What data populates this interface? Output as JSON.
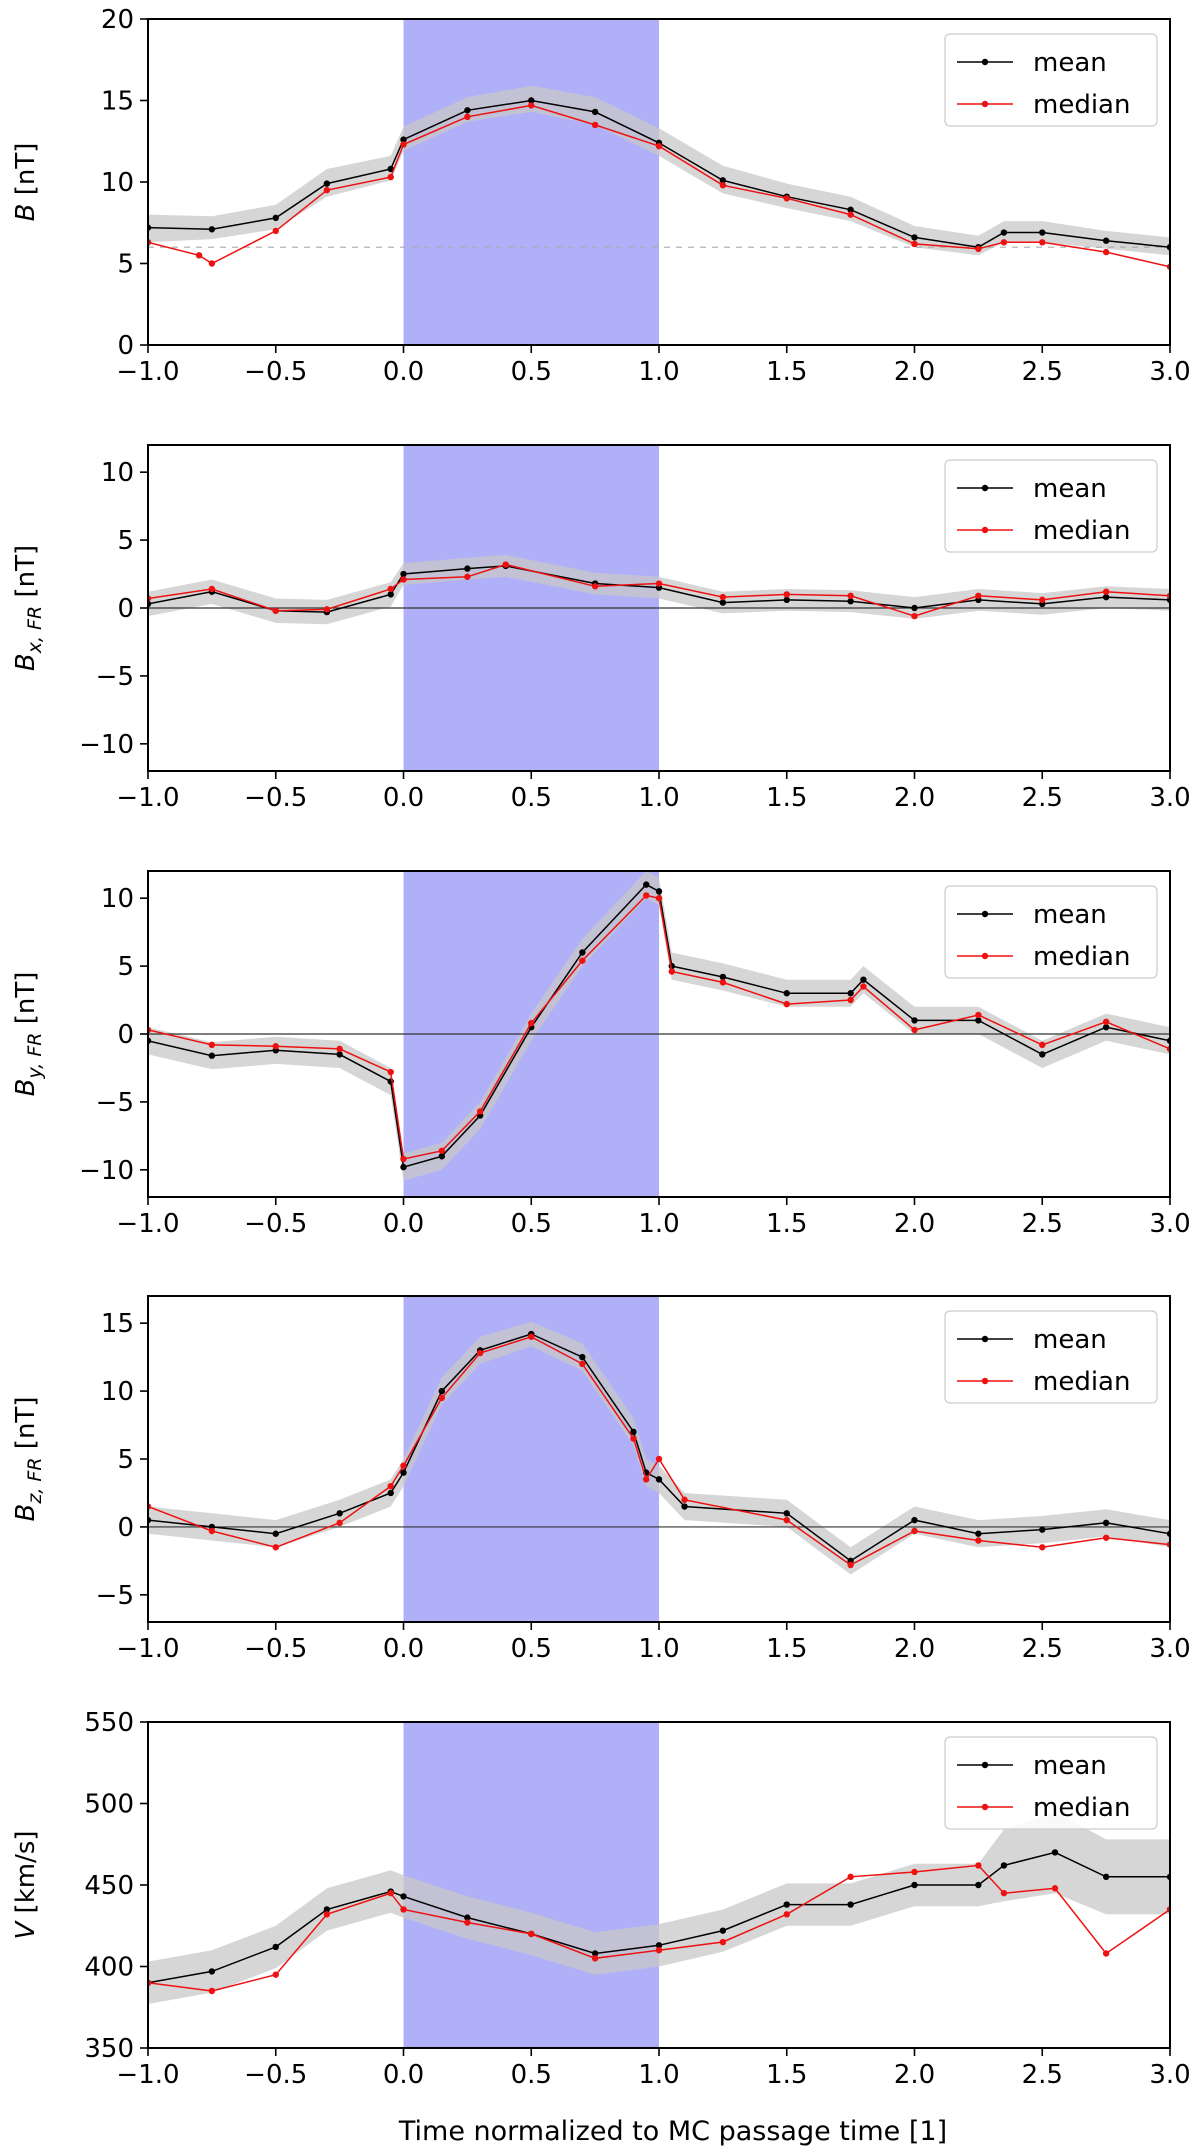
{
  "figure": {
    "xlabel": "Time normalized to MC passage time [1]",
    "shade_color": "#b0b0f8",
    "band_color": "#c8c8c8",
    "mean_color": "#000000",
    "median_color": "#ee1111"
  },
  "chart_data": [
    {
      "type": "line",
      "ylabel_main": "B",
      "ylabel_sub": "",
      "ylabel_unit": " [nT]",
      "ylim": [
        0,
        20
      ],
      "yticks": [
        0,
        5,
        10,
        15,
        20
      ],
      "xlim": [
        -1.0,
        3.0
      ],
      "xticks": [
        "−1.0",
        "−0.5",
        "0.0",
        "0.5",
        "1.0",
        "1.5",
        "2.0",
        "2.5",
        "3.0"
      ],
      "shaded_interval": [
        0.0,
        1.0
      ],
      "reference": {
        "value": 6,
        "style": "dashed"
      },
      "legend": [
        "mean",
        "median"
      ],
      "series": [
        {
          "name": "mean",
          "x": [
            -1.0,
            -0.75,
            -0.5,
            -0.3,
            -0.05,
            0.0,
            0.25,
            0.5,
            0.75,
            1.0,
            1.25,
            1.5,
            1.75,
            2.0,
            2.25,
            2.35,
            2.5,
            2.75,
            3.0
          ],
          "values": [
            7.2,
            7.1,
            7.8,
            9.9,
            10.8,
            12.6,
            14.4,
            15.0,
            14.3,
            12.4,
            10.1,
            9.1,
            8.3,
            6.6,
            6.0,
            6.9,
            6.9,
            6.4,
            6.0
          ]
        },
        {
          "name": "median",
          "x": [
            -1.0,
            -0.8,
            -0.75,
            -0.5,
            -0.3,
            -0.05,
            0.0,
            0.25,
            0.5,
            0.75,
            1.0,
            1.25,
            1.5,
            1.75,
            2.0,
            2.25,
            2.35,
            2.5,
            2.75,
            3.0
          ],
          "values": [
            6.3,
            5.5,
            5.0,
            7.0,
            9.5,
            10.3,
            12.3,
            14.0,
            14.7,
            13.5,
            12.2,
            9.8,
            9.0,
            8.0,
            6.2,
            5.9,
            6.3,
            6.3,
            5.7,
            4.8
          ]
        }
      ],
      "band": {
        "lower": [
          6.3,
          6.5,
          7.1,
          9.1,
          10.1,
          11.9,
          13.7,
          14.3,
          13.5,
          11.6,
          9.3,
          8.4,
          7.6,
          6.0,
          5.5,
          6.3,
          6.3,
          5.9,
          5.5
        ],
        "upper": [
          8.0,
          7.9,
          8.6,
          10.8,
          11.6,
          13.4,
          15.2,
          15.9,
          15.2,
          13.3,
          11.0,
          9.9,
          9.1,
          7.3,
          6.7,
          7.6,
          7.6,
          7.0,
          6.6
        ]
      }
    },
    {
      "type": "line",
      "ylabel_main": "B",
      "ylabel_sub": "x, FR",
      "ylabel_unit": " [nT]",
      "ylim": [
        -12,
        12
      ],
      "yticks": [
        -10,
        -5,
        0,
        5,
        10
      ],
      "xlim": [
        -1.0,
        3.0
      ],
      "xticks": [
        "−1.0",
        "−0.5",
        "0.0",
        "0.5",
        "1.0",
        "1.5",
        "2.0",
        "2.5",
        "3.0"
      ],
      "shaded_interval": [
        0.0,
        1.0
      ],
      "reference": {
        "value": 0,
        "style": "solid"
      },
      "legend": [
        "mean",
        "median"
      ],
      "series": [
        {
          "name": "mean",
          "x": [
            -1.0,
            -0.75,
            -0.5,
            -0.3,
            -0.05,
            0.0,
            0.25,
            0.4,
            0.75,
            1.0,
            1.25,
            1.5,
            1.75,
            2.0,
            2.25,
            2.5,
            2.75,
            3.0
          ],
          "values": [
            0.3,
            1.2,
            -0.2,
            -0.3,
            1.0,
            2.5,
            2.9,
            3.1,
            1.8,
            1.5,
            0.4,
            0.6,
            0.5,
            0.0,
            0.6,
            0.3,
            0.8,
            0.6
          ]
        },
        {
          "name": "median",
          "x": [
            -1.0,
            -0.75,
            -0.5,
            -0.3,
            -0.05,
            0.0,
            0.25,
            0.4,
            0.75,
            1.0,
            1.25,
            1.5,
            1.75,
            2.0,
            2.25,
            2.5,
            2.75,
            3.0
          ],
          "values": [
            0.7,
            1.4,
            -0.2,
            -0.1,
            1.4,
            2.1,
            2.3,
            3.2,
            1.6,
            1.8,
            0.8,
            1.0,
            0.9,
            -0.6,
            0.9,
            0.6,
            1.2,
            0.9
          ]
        }
      ],
      "band": {
        "lower": [
          -0.6,
          0.3,
          -1.1,
          -1.2,
          0.1,
          1.7,
          2.1,
          2.3,
          1.0,
          0.7,
          -0.4,
          -0.2,
          -0.3,
          -0.8,
          -0.2,
          -0.5,
          0.0,
          -0.2
        ],
        "upper": [
          1.2,
          2.1,
          0.7,
          0.6,
          1.9,
          3.3,
          3.7,
          3.9,
          2.6,
          2.3,
          1.2,
          1.4,
          1.3,
          0.8,
          1.4,
          1.1,
          1.6,
          1.4
        ]
      }
    },
    {
      "type": "line",
      "ylabel_main": "B",
      "ylabel_sub": "y, FR",
      "ylabel_unit": " [nT]",
      "ylim": [
        -12,
        12
      ],
      "yticks": [
        -10,
        -5,
        0,
        5,
        10
      ],
      "xlim": [
        -1.0,
        3.0
      ],
      "xticks": [
        "−1.0",
        "−0.5",
        "0.0",
        "0.5",
        "1.0",
        "1.5",
        "2.0",
        "2.5",
        "3.0"
      ],
      "shaded_interval": [
        0.0,
        1.0
      ],
      "reference": {
        "value": 0,
        "style": "solid"
      },
      "legend": [
        "mean",
        "median"
      ],
      "series": [
        {
          "name": "mean",
          "x": [
            -1.0,
            -0.75,
            -0.5,
            -0.25,
            -0.05,
            0.0,
            0.15,
            0.3,
            0.5,
            0.7,
            0.95,
            1.0,
            1.05,
            1.25,
            1.5,
            1.75,
            1.8,
            2.0,
            2.25,
            2.5,
            2.75,
            3.0
          ],
          "values": [
            -0.5,
            -1.6,
            -1.2,
            -1.5,
            -3.5,
            -9.8,
            -9.0,
            -6.0,
            0.5,
            6.0,
            11.0,
            10.5,
            5.0,
            4.2,
            3.0,
            3.0,
            4.0,
            1.0,
            1.0,
            -1.5,
            0.5,
            -0.5
          ]
        },
        {
          "name": "median",
          "x": [
            -1.0,
            -0.75,
            -0.5,
            -0.25,
            -0.05,
            0.0,
            0.15,
            0.3,
            0.5,
            0.7,
            0.95,
            1.0,
            1.05,
            1.25,
            1.5,
            1.75,
            1.8,
            2.0,
            2.25,
            2.5,
            2.75,
            3.0
          ],
          "values": [
            0.3,
            -0.8,
            -0.9,
            -1.1,
            -2.8,
            -9.2,
            -8.6,
            -5.7,
            0.8,
            5.4,
            10.2,
            10.0,
            4.6,
            3.8,
            2.2,
            2.5,
            3.5,
            0.3,
            1.4,
            -0.8,
            0.9,
            -1.1
          ]
        }
      ],
      "band": {
        "lower": [
          -1.5,
          -2.6,
          -2.2,
          -2.5,
          -4.5,
          -10.8,
          -10.0,
          -7.0,
          -0.5,
          5.0,
          10.0,
          9.5,
          4.0,
          3.2,
          2.0,
          2.0,
          3.0,
          0.0,
          0.0,
          -2.5,
          -0.5,
          -1.5
        ],
        "upper": [
          0.5,
          -0.6,
          -0.2,
          -0.5,
          -2.5,
          -8.8,
          -8.0,
          -5.0,
          1.5,
          7.0,
          12.0,
          11.5,
          6.0,
          5.2,
          4.0,
          4.0,
          5.0,
          2.0,
          2.0,
          -0.5,
          1.5,
          0.5
        ]
      }
    },
    {
      "type": "line",
      "ylabel_main": "B",
      "ylabel_sub": "z, FR",
      "ylabel_unit": " [nT]",
      "ylim": [
        -7,
        17
      ],
      "yticks": [
        -5,
        0,
        5,
        10,
        15
      ],
      "xlim": [
        -1.0,
        3.0
      ],
      "xticks": [
        "−1.0",
        "−0.5",
        "0.0",
        "0.5",
        "1.0",
        "1.5",
        "2.0",
        "2.5",
        "3.0"
      ],
      "shaded_interval": [
        0.0,
        1.0
      ],
      "reference": {
        "value": 0,
        "style": "solid"
      },
      "legend": [
        "mean",
        "median"
      ],
      "series": [
        {
          "name": "mean",
          "x": [
            -1.0,
            -0.75,
            -0.5,
            -0.25,
            -0.05,
            0.0,
            0.15,
            0.3,
            0.5,
            0.7,
            0.9,
            0.95,
            1.0,
            1.1,
            1.5,
            1.75,
            2.0,
            2.25,
            2.5,
            2.75,
            3.0
          ],
          "values": [
            0.5,
            0.0,
            -0.5,
            1.0,
            2.5,
            4.0,
            10.0,
            13.0,
            14.2,
            12.5,
            7.0,
            4.0,
            3.5,
            1.5,
            1.0,
            -2.5,
            0.5,
            -0.5,
            -0.2,
            0.3,
            -0.5
          ]
        },
        {
          "name": "median",
          "x": [
            -1.0,
            -0.75,
            -0.5,
            -0.25,
            -0.05,
            0.0,
            0.15,
            0.3,
            0.5,
            0.7,
            0.9,
            0.95,
            1.0,
            1.1,
            1.5,
            1.75,
            2.0,
            2.25,
            2.5,
            2.75,
            3.0
          ],
          "values": [
            1.5,
            -0.3,
            -1.5,
            0.3,
            3.0,
            4.5,
            9.5,
            12.8,
            14.0,
            12.0,
            6.5,
            3.5,
            5.0,
            2.0,
            0.5,
            -2.8,
            -0.3,
            -1.0,
            -1.5,
            -0.8,
            -1.3
          ]
        }
      ],
      "band": {
        "lower": [
          -0.5,
          -1.0,
          -1.5,
          0.0,
          1.5,
          3.0,
          9.0,
          12.0,
          13.3,
          11.5,
          6.0,
          3.0,
          2.5,
          0.5,
          0.0,
          -3.5,
          -0.5,
          -1.5,
          -1.2,
          -0.7,
          -1.5
        ],
        "upper": [
          1.5,
          1.0,
          0.5,
          2.0,
          3.5,
          5.0,
          11.0,
          14.0,
          15.1,
          13.5,
          8.0,
          5.0,
          4.5,
          2.5,
          2.0,
          -1.5,
          1.5,
          0.5,
          0.8,
          1.3,
          0.5
        ]
      }
    },
    {
      "type": "line",
      "ylabel_main": "V",
      "ylabel_sub": "",
      "ylabel_unit": " [km/s]",
      "ylim": [
        350,
        550
      ],
      "yticks": [
        350,
        400,
        450,
        500,
        550
      ],
      "xlim": [
        -1.0,
        3.0
      ],
      "xticks": [
        "−1.0",
        "−0.5",
        "0.0",
        "0.5",
        "1.0",
        "1.5",
        "2.0",
        "2.5",
        "3.0"
      ],
      "shaded_interval": [
        0.0,
        1.0
      ],
      "reference": null,
      "legend": [
        "mean",
        "median"
      ],
      "series": [
        {
          "name": "mean",
          "x": [
            -1.0,
            -0.75,
            -0.5,
            -0.3,
            -0.05,
            0.0,
            0.25,
            0.5,
            0.75,
            1.0,
            1.25,
            1.5,
            1.75,
            2.0,
            2.25,
            2.35,
            2.55,
            2.75,
            3.0
          ],
          "values": [
            390,
            397,
            412,
            435,
            446,
            443,
            430,
            420,
            408,
            413,
            422,
            438,
            438,
            450,
            450,
            462,
            470,
            455,
            455
          ]
        },
        {
          "name": "median",
          "x": [
            -1.0,
            -0.75,
            -0.5,
            -0.3,
            -0.05,
            0.0,
            0.25,
            0.5,
            0.75,
            1.0,
            1.25,
            1.5,
            1.75,
            2.0,
            2.25,
            2.35,
            2.55,
            2.75,
            3.0
          ],
          "values": [
            390,
            385,
            395,
            432,
            445,
            435,
            427,
            420,
            405,
            410,
            415,
            432,
            455,
            458,
            462,
            445,
            448,
            408,
            435
          ]
        }
      ],
      "band": {
        "lower": [
          377,
          384,
          399,
          422,
          433,
          430,
          417,
          407,
          395,
          400,
          409,
          425,
          425,
          437,
          437,
          440,
          445,
          432,
          432
        ],
        "upper": [
          403,
          410,
          425,
          448,
          459,
          456,
          443,
          433,
          421,
          426,
          435,
          451,
          451,
          463,
          463,
          484,
          495,
          478,
          478
        ]
      }
    }
  ]
}
